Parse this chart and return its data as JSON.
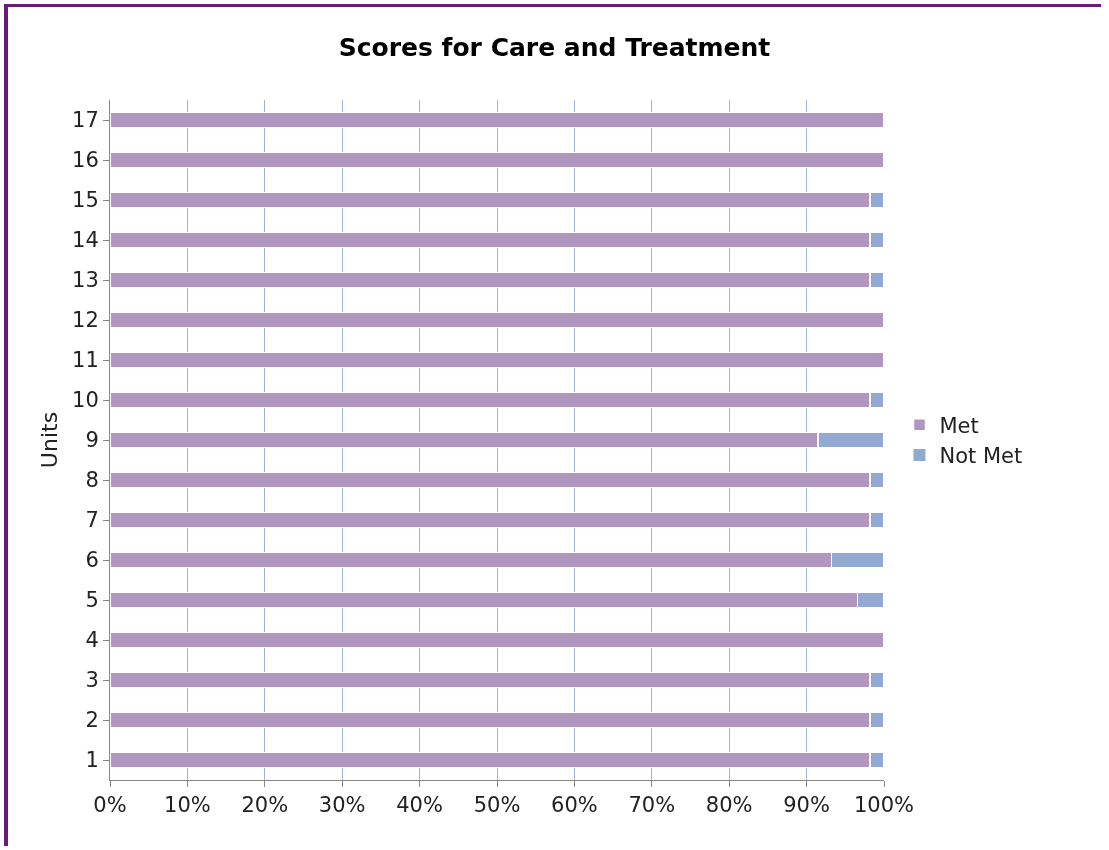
{
  "chart_data": {
    "type": "bar",
    "title": "Scores for Care and Treatment",
    "ylabel": "Units",
    "orientation": "horizontal",
    "stacked": true,
    "categories": [
      "17",
      "16",
      "15",
      "14",
      "13",
      "12",
      "11",
      "10",
      "9",
      "8",
      "7",
      "6",
      "5",
      "4",
      "3",
      "2",
      "1"
    ],
    "series": [
      {
        "name": "Met",
        "color": "#b196c0",
        "values": [
          100,
          100,
          98.2,
          98.2,
          98.2,
          100,
          100,
          98.2,
          91.5,
          98.2,
          98.2,
          93.2,
          96.6,
          100,
          98.2,
          98.2,
          98.2
        ]
      },
      {
        "name": "Not Met",
        "color": "#92a9d1",
        "values": [
          0,
          0,
          1.8,
          1.8,
          1.8,
          0,
          0,
          1.8,
          8.5,
          1.8,
          1.8,
          6.8,
          3.4,
          0,
          1.8,
          1.8,
          1.8
        ]
      }
    ],
    "xlim": [
      0,
      100
    ],
    "xticks": [
      {
        "value": 0,
        "label": "0%"
      },
      {
        "value": 10,
        "label": "10%"
      },
      {
        "value": 20,
        "label": "20%"
      },
      {
        "value": 30,
        "label": "30%"
      },
      {
        "value": 40,
        "label": "40%"
      },
      {
        "value": 50,
        "label": "50%"
      },
      {
        "value": 60,
        "label": "60%"
      },
      {
        "value": 70,
        "label": "70%"
      },
      {
        "value": 80,
        "label": "80%"
      },
      {
        "value": 90,
        "label": "90%"
      },
      {
        "value": 100,
        "label": "100%"
      }
    ],
    "grid": "x",
    "legend": "right"
  }
}
